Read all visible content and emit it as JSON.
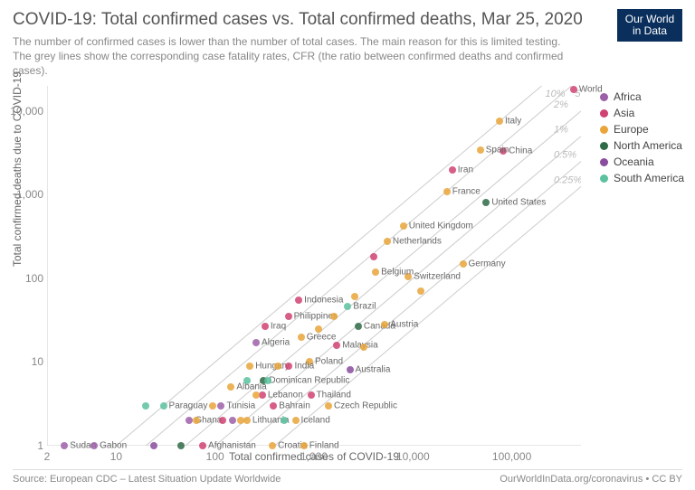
{
  "title": "COVID-19: Total confirmed cases vs. Total confirmed deaths, Mar 25, 2020",
  "subtitle": "The number of confirmed cases is lower than the number of total cases. The main reason for this is limited testing. The grey lines show the corresponding case fatality rates, CFR (the ratio between confirmed deaths and confirmed cases).",
  "logo": {
    "line1": "Our World",
    "line2": "in Data"
  },
  "footer_left": "Source: European CDC – Latest Situation Update Worldwide",
  "footer_right": "OurWorldInData.org/coronavirus • CC BY",
  "chart": {
    "type": "scatter",
    "xscale": "log",
    "yscale": "log",
    "xlim": [
      2,
      500000
    ],
    "ylim": [
      1,
      20000
    ],
    "xticks": [
      2,
      10,
      100,
      1000,
      10000,
      100000
    ],
    "xtick_labels": [
      "2",
      "10",
      "100",
      "1,000",
      "10,000",
      "100,000"
    ],
    "yticks": [
      1,
      10,
      100,
      1000,
      10000
    ],
    "ytick_labels": [
      "1",
      "10",
      "100",
      "1,000",
      "10,000"
    ],
    "xlabel": "Total confirmed cases of COVID-19",
    "ylabel": "Total confirmed deaths due to COVID-19",
    "background": "#ffffff",
    "grid_color": "#eeeeee",
    "axis_color": "#cccccc",
    "cfr_line_color": "#cccccc",
    "cfr_label_color": "#bbbbbb",
    "label_fontsize": 12,
    "tick_fontsize": 12,
    "point_label_fontsize": 10,
    "marker_radius": 4,
    "cfr_lines": [
      {
        "rate": 0.1,
        "label": "10%"
      },
      {
        "rate": 0.05,
        "label": "5%"
      },
      {
        "rate": 0.02,
        "label": "2%"
      },
      {
        "rate": 0.01,
        "label": "1%"
      },
      {
        "rate": 0.005,
        "label": "0.5%"
      },
      {
        "rate": 0.0025,
        "label": "0.25%"
      }
    ]
  },
  "regions": {
    "Africa": "#9d5fa8",
    "Asia": "#cf4272",
    "Europe": "#e9a53a",
    "North America": "#2f6b47",
    "Oceania": "#8a4c9e",
    "South America": "#5bc19e"
  },
  "points": [
    {
      "name": "World",
      "c": 420000,
      "d": 18000,
      "region": "Asia",
      "label": "World"
    },
    {
      "name": "Italy",
      "c": 75000,
      "d": 7500,
      "region": "Europe",
      "label": "Italy"
    },
    {
      "name": "China",
      "c": 82000,
      "d": 3300,
      "region": "Asia",
      "label": "China"
    },
    {
      "name": "Spain",
      "c": 48000,
      "d": 3400,
      "region": "Europe",
      "label": "Spain"
    },
    {
      "name": "Iran",
      "c": 25000,
      "d": 2000,
      "region": "Asia",
      "label": "Iran"
    },
    {
      "name": "France",
      "c": 22000,
      "d": 1100,
      "region": "Europe",
      "label": "France"
    },
    {
      "name": "United States",
      "c": 55000,
      "d": 800,
      "region": "North America",
      "label": "United States"
    },
    {
      "name": "United Kingdom",
      "c": 8000,
      "d": 420,
      "region": "Europe",
      "label": "United Kingdom"
    },
    {
      "name": "Netherlands",
      "c": 5500,
      "d": 280,
      "region": "Europe",
      "label": "Netherlands"
    },
    {
      "name": "Germany",
      "c": 32000,
      "d": 150,
      "region": "Europe",
      "label": "Germany"
    },
    {
      "name": "Switzerland",
      "c": 9000,
      "d": 105,
      "region": "Europe",
      "label": "Switzerland"
    },
    {
      "name": "Belgium",
      "c": 4200,
      "d": 120,
      "region": "Europe",
      "label": "Belgium"
    },
    {
      "name": "Indonesia",
      "c": 700,
      "d": 55,
      "region": "Asia",
      "label": "Indonesia"
    },
    {
      "name": "Brazil",
      "c": 2200,
      "d": 46,
      "region": "South America",
      "label": "Brazil"
    },
    {
      "name": "Philippines",
      "c": 550,
      "d": 35,
      "region": "Asia",
      "label": "Philippines"
    },
    {
      "name": "Canada",
      "c": 2800,
      "d": 27,
      "region": "North America",
      "label": "Canada"
    },
    {
      "name": "Iraq",
      "c": 320,
      "d": 27,
      "region": "Asia",
      "label": "Iraq"
    },
    {
      "name": "Greece",
      "c": 740,
      "d": 20,
      "region": "Europe",
      "label": "Greece"
    },
    {
      "name": "Austria",
      "c": 5200,
      "d": 28,
      "region": "Europe",
      "label": "Austria"
    },
    {
      "name": "Algeria",
      "c": 260,
      "d": 17,
      "region": "Africa",
      "label": "Algeria"
    },
    {
      "name": "Malaysia",
      "c": 1700,
      "d": 16,
      "region": "Asia",
      "label": "Malaysia"
    },
    {
      "name": "Poland",
      "c": 900,
      "d": 10,
      "region": "Europe",
      "label": "Poland"
    },
    {
      "name": "Hungary",
      "c": 225,
      "d": 9,
      "region": "Europe",
      "label": "Hungary"
    },
    {
      "name": "India",
      "c": 560,
      "d": 9,
      "region": "Asia",
      "label": "India"
    },
    {
      "name": "Australia",
      "c": 2300,
      "d": 8,
      "region": "Oceania",
      "label": "Australia"
    },
    {
      "name": "Dominican Republic",
      "c": 310,
      "d": 6,
      "region": "North America",
      "label": "Dominican Republic"
    },
    {
      "name": "Albania",
      "c": 145,
      "d": 5,
      "region": "Europe",
      "label": "Albania"
    },
    {
      "name": "Thailand",
      "c": 930,
      "d": 4,
      "region": "Asia",
      "label": "Thailand"
    },
    {
      "name": "Lebanon",
      "c": 300,
      "d": 4,
      "region": "Asia",
      "label": "Lebanon"
    },
    {
      "name": "Bahrain",
      "c": 390,
      "d": 3,
      "region": "Asia",
      "label": "Bahrain"
    },
    {
      "name": "Tunisia",
      "c": 115,
      "d": 3,
      "region": "Africa",
      "label": "Tunisia"
    },
    {
      "name": "Paraguay",
      "c": 30,
      "d": 3,
      "region": "South America",
      "label": "Paraguay"
    },
    {
      "name": "Czech Republic",
      "c": 1400,
      "d": 3,
      "region": "Europe",
      "label": "Czech Republic"
    },
    {
      "name": "Ghana",
      "c": 55,
      "d": 2,
      "region": "Africa",
      "label": "Ghana"
    },
    {
      "name": "Lithuania",
      "c": 210,
      "d": 2,
      "region": "Europe",
      "label": "Lithuania"
    },
    {
      "name": "Iceland",
      "c": 650,
      "d": 2,
      "region": "Europe",
      "label": "Iceland"
    },
    {
      "name": "Afghanistan",
      "c": 75,
      "d": 1,
      "region": "Asia",
      "label": "Afghanistan"
    },
    {
      "name": "Croatia",
      "c": 380,
      "d": 1,
      "region": "Europe",
      "label": "Croatia"
    },
    {
      "name": "Finland",
      "c": 790,
      "d": 1,
      "region": "Europe",
      "label": "Finland"
    },
    {
      "name": "Sudan",
      "c": 3,
      "d": 1,
      "region": "Africa",
      "label": "Sudan"
    },
    {
      "name": "Gabon",
      "c": 6,
      "d": 1,
      "region": "Africa",
      "label": "Gabon"
    },
    {
      "name": "u1",
      "c": 20,
      "d": 3,
      "region": "South America"
    },
    {
      "name": "u2",
      "c": 24,
      "d": 1,
      "region": "Oceania"
    },
    {
      "name": "u3",
      "c": 45,
      "d": 1,
      "region": "North America"
    },
    {
      "name": "u4",
      "c": 120,
      "d": 2,
      "region": "Asia"
    },
    {
      "name": "u5",
      "c": 150,
      "d": 2,
      "region": "Africa"
    },
    {
      "name": "u6",
      "c": 180,
      "d": 2,
      "region": "Europe"
    },
    {
      "name": "u7",
      "c": 95,
      "d": 3,
      "region": "Europe"
    },
    {
      "name": "u8",
      "c": 260,
      "d": 4,
      "region": "Europe"
    },
    {
      "name": "u9",
      "c": 500,
      "d": 2,
      "region": "South America"
    },
    {
      "name": "u10",
      "c": 1100,
      "d": 25,
      "region": "Europe"
    },
    {
      "name": "u11",
      "c": 1600,
      "d": 35,
      "region": "Europe"
    },
    {
      "name": "u12",
      "c": 2600,
      "d": 60,
      "region": "Europe"
    },
    {
      "name": "u13",
      "c": 4000,
      "d": 180,
      "region": "Asia"
    },
    {
      "name": "u14",
      "c": 340,
      "d": 6,
      "region": "South America"
    },
    {
      "name": "u15",
      "c": 12000,
      "d": 70,
      "region": "Europe"
    },
    {
      "name": "u16",
      "c": 3200,
      "d": 15,
      "region": "Europe"
    },
    {
      "name": "u17",
      "c": 65,
      "d": 2,
      "region": "Europe"
    },
    {
      "name": "u18",
      "c": 210,
      "d": 6,
      "region": "South America"
    },
    {
      "name": "u19",
      "c": 430,
      "d": 9,
      "region": "Europe"
    }
  ]
}
